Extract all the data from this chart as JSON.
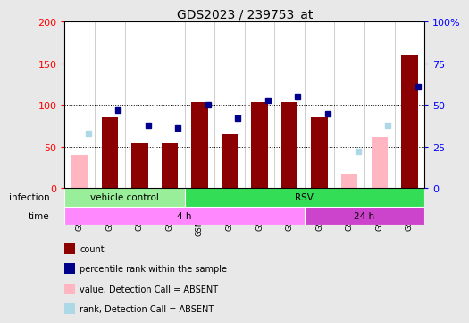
{
  "title": "GDS2023 / 239753_at",
  "samples": [
    "GSM76392",
    "GSM76393",
    "GSM76394",
    "GSM76395",
    "GSM76396e",
    "GSM76397",
    "GSM76398",
    "GSM76399",
    "GSM76400",
    "GSM76401",
    "GSM76402",
    "GSM76403"
  ],
  "count_values": [
    40,
    85,
    54,
    54,
    103,
    65,
    103,
    103,
    85,
    18,
    62,
    160
  ],
  "rank_values": [
    33,
    47,
    38,
    36,
    50,
    42,
    53,
    55,
    45,
    22,
    38,
    61
  ],
  "absent_mask": [
    true,
    false,
    false,
    false,
    false,
    false,
    false,
    false,
    false,
    true,
    true,
    false
  ],
  "ylim_left": [
    0,
    200
  ],
  "ylim_right": [
    0,
    100
  ],
  "yticks_left": [
    0,
    50,
    100,
    150,
    200
  ],
  "yticks_right": [
    0,
    25,
    50,
    75,
    100
  ],
  "yticklabels_right": [
    "0",
    "25",
    "50",
    "75",
    "100%"
  ],
  "color_bar_present": "#8B0000",
  "color_bar_absent": "#FFB6C1",
  "color_rank_present": "#00008B",
  "color_rank_absent": "#ADD8E6",
  "background_color": "#e8e8e8",
  "plot_background": "white",
  "infection_groups": [
    {
      "label": "vehicle control",
      "start": 0,
      "end": 4,
      "color": "#99EE99"
    },
    {
      "label": "RSV",
      "start": 4,
      "end": 12,
      "color": "#33DD55"
    }
  ],
  "time_groups": [
    {
      "label": "4 h",
      "start": 0,
      "end": 8,
      "color": "#FF88FF"
    },
    {
      "label": "24 h",
      "start": 8,
      "end": 12,
      "color": "#CC44CC"
    }
  ],
  "legend_data": [
    {
      "color": "#8B0000",
      "label": "count"
    },
    {
      "color": "#00008B",
      "label": "percentile rank within the sample"
    },
    {
      "color": "#FFB6C1",
      "label": "value, Detection Call = ABSENT"
    },
    {
      "color": "#ADD8E6",
      "label": "rank, Detection Call = ABSENT"
    }
  ]
}
